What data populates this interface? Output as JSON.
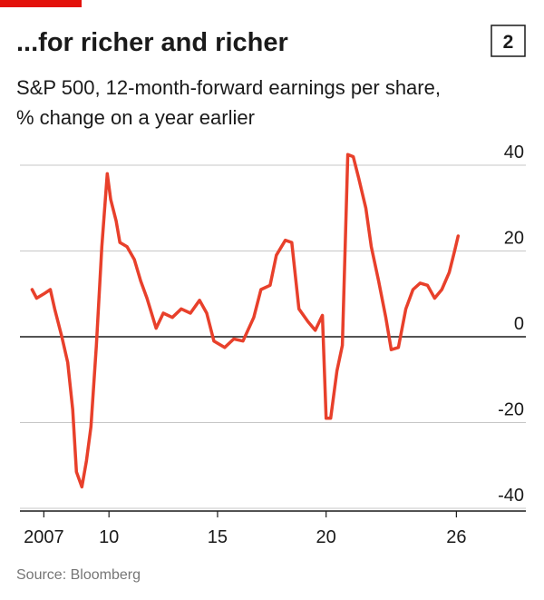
{
  "chart_data": {
    "type": "line",
    "title": "...for richer and richer",
    "badge": "2",
    "subtitle": [
      "S&P 500, 12-month-forward earnings per share,",
      "% change on a year earlier"
    ],
    "source": "Source: Bloomberg",
    "color": "#e8402b",
    "grid": true,
    "xlim": [
      2005.9,
      2029.2
    ],
    "xticks": [
      2007,
      {
        "value": 2010,
        "label": "10"
      },
      {
        "value": 2015,
        "label": "15"
      },
      {
        "value": 2020,
        "label": "20"
      },
      {
        "value": 2026,
        "label": "26"
      }
    ],
    "ylim": [
      -40,
      44
    ],
    "yticks": [
      40,
      20,
      0,
      -20,
      -40
    ],
    "x": [
      2006.46,
      2006.67,
      2007.0,
      2007.3,
      2007.5,
      2007.83,
      2008.1,
      2008.33,
      2008.5,
      2008.75,
      2008.96,
      2009.17,
      2009.42,
      2009.67,
      2009.92,
      2010.08,
      2010.33,
      2010.5,
      2010.83,
      2011.17,
      2011.46,
      2011.75,
      2012.17,
      2012.5,
      2012.92,
      2013.33,
      2013.75,
      2014.17,
      2014.5,
      2014.83,
      2015.33,
      2015.75,
      2016.17,
      2016.67,
      2017.0,
      2017.42,
      2017.71,
      2018.12,
      2018.42,
      2018.75,
      2019.17,
      2019.5,
      2019.83,
      2020.0,
      2020.21,
      2020.5,
      2020.75,
      2021.0,
      2021.25,
      2021.5,
      2021.83,
      2022.08,
      2022.42,
      2022.75,
      2023.0,
      2023.33,
      2023.67,
      2024.0,
      2024.33,
      2024.67,
      2025.0,
      2025.33,
      2025.67,
      2025.92,
      2026.08
    ],
    "values": [
      11,
      9,
      10,
      11,
      6.5,
      0,
      -6,
      -17,
      -31.5,
      -35,
      -29,
      -21,
      -2,
      21,
      38,
      32,
      27,
      22,
      21,
      18,
      13,
      9,
      2,
      5.5,
      4.5,
      6.5,
      5.5,
      8.5,
      5.5,
      -1,
      -2.5,
      -0.5,
      -1,
      4.5,
      11,
      12,
      19,
      22.5,
      22,
      6.5,
      3.5,
      1.5,
      5,
      -19,
      -19,
      -8,
      -2,
      42.5,
      42,
      37,
      30,
      21,
      13,
      4.5,
      -3,
      -2.5,
      6.5,
      11,
      12.5,
      12,
      9,
      11,
      15,
      20,
      23.5
    ]
  }
}
